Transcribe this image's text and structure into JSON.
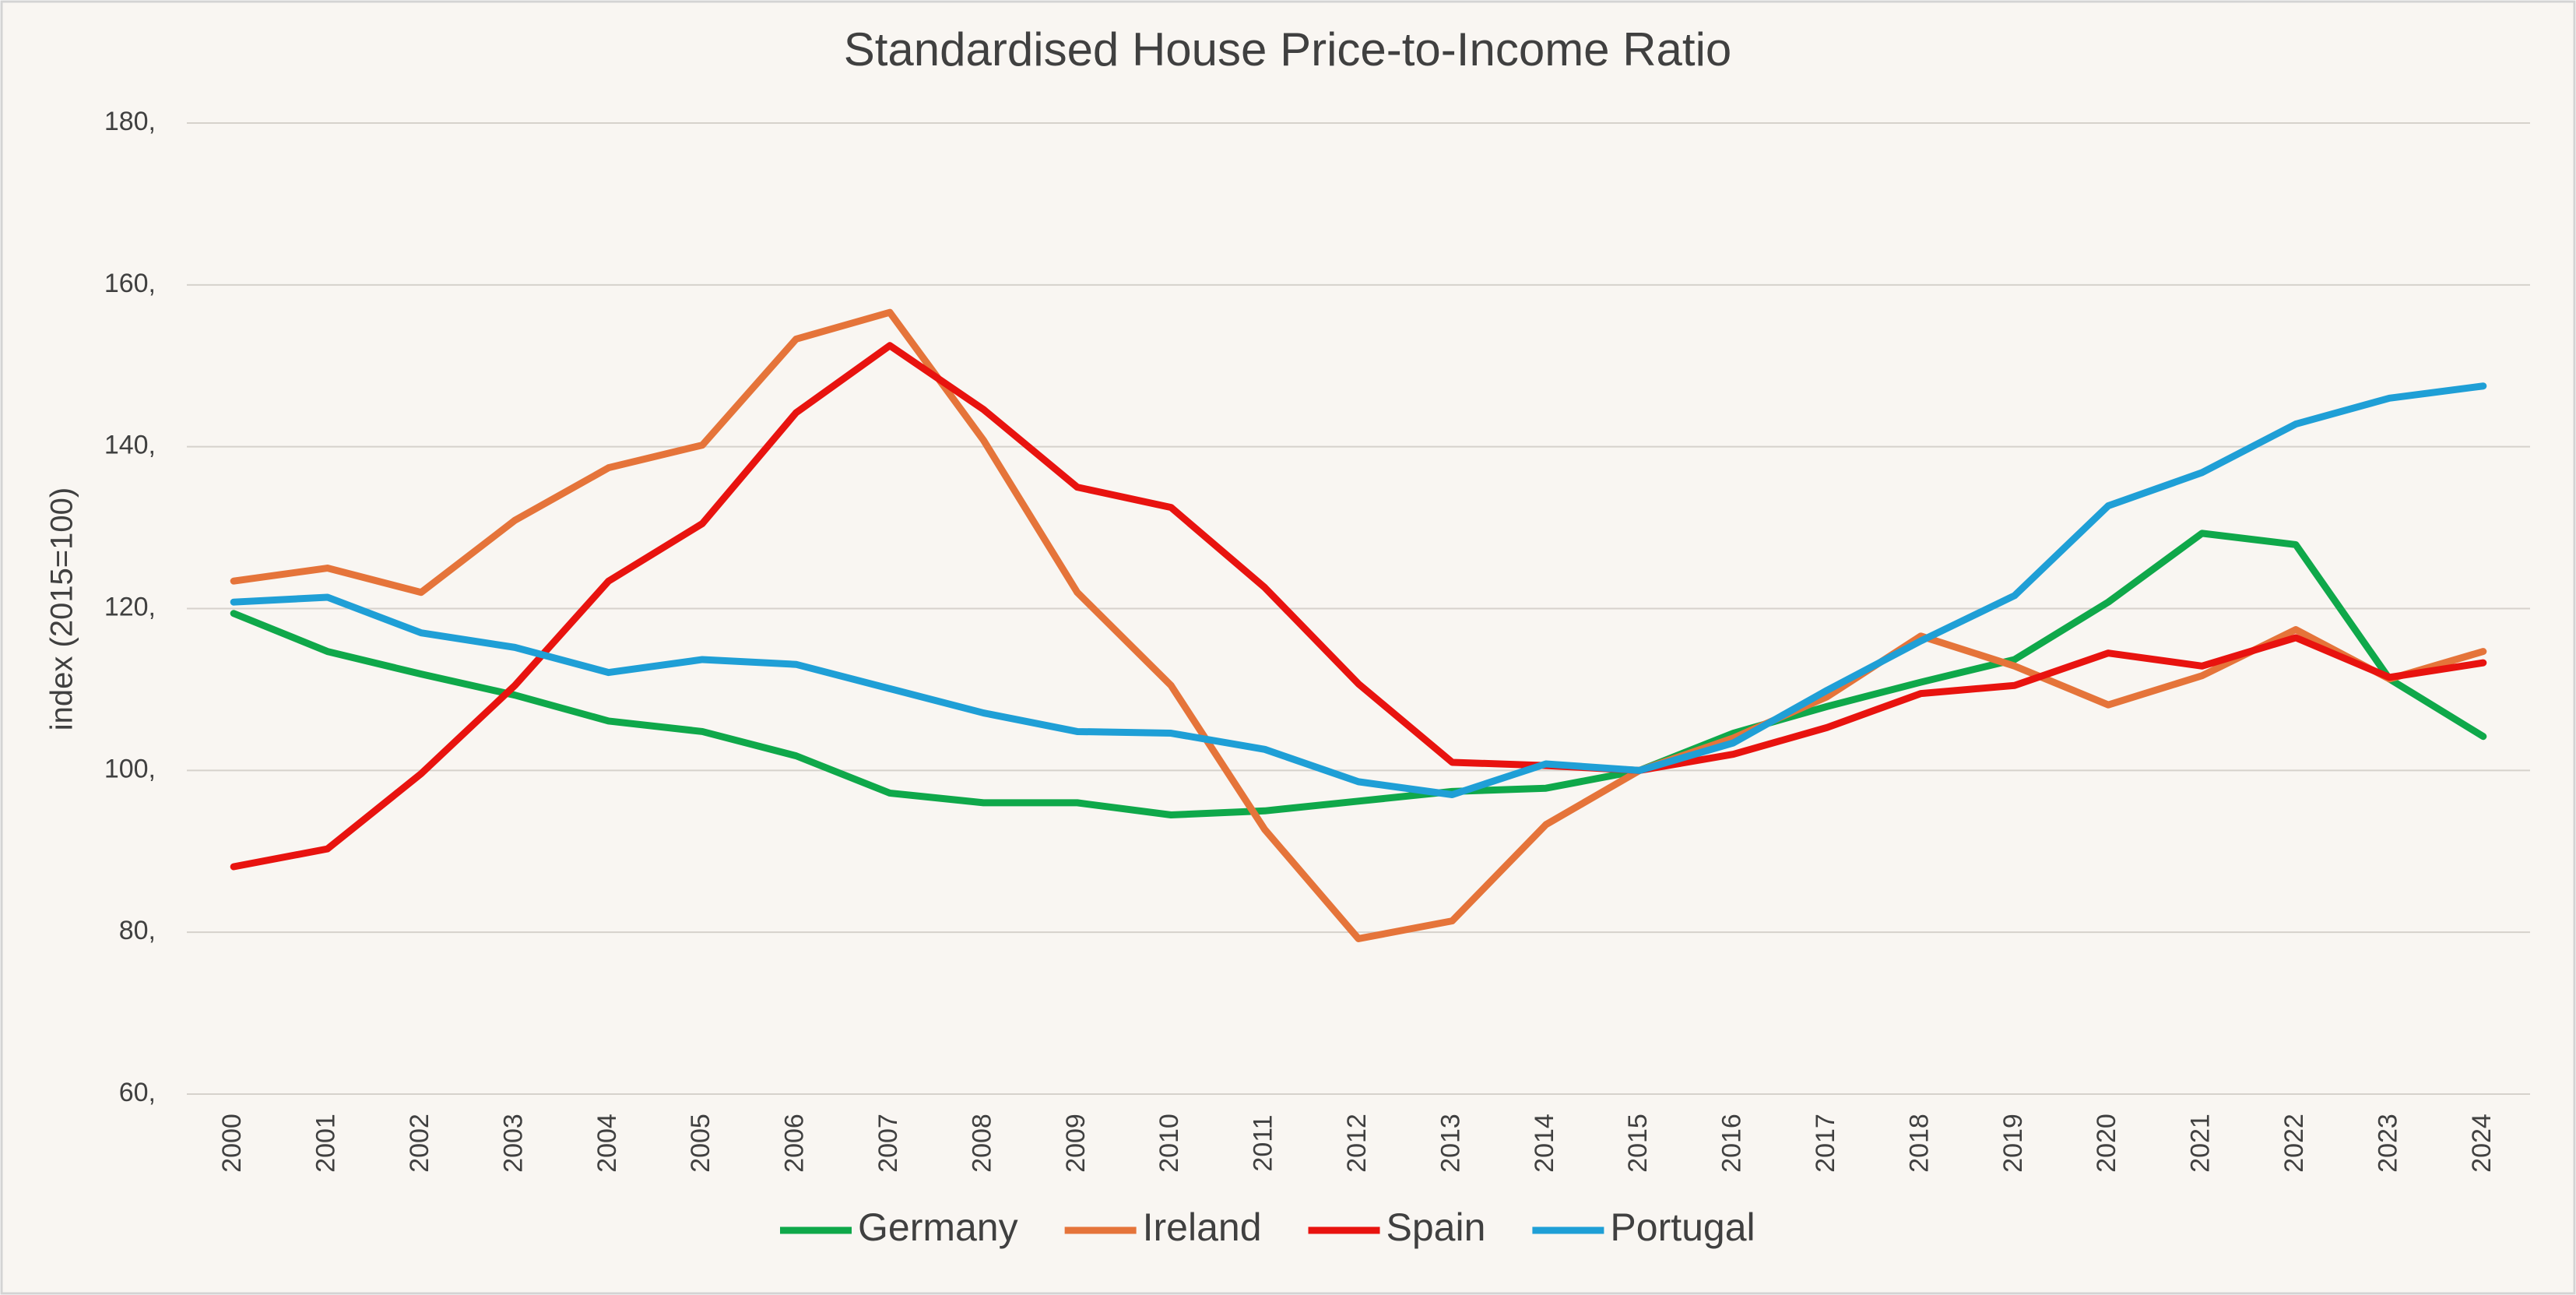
{
  "chart_data": {
    "type": "line",
    "title": "Standardised House Price-to-Income Ratio",
    "y_label": "index (2015=100)",
    "categories": [
      "2000",
      "2001",
      "2002",
      "2003",
      "2004",
      "2005",
      "2006",
      "2007",
      "2008",
      "2009",
      "2010",
      "2011",
      "2012",
      "2013",
      "2014",
      "2015",
      "2016",
      "2017",
      "2018",
      "2019",
      "2020",
      "2021",
      "2022",
      "2023",
      "2024"
    ],
    "series": [
      {
        "name": "Germany",
        "color": "#0fa84a",
        "values": [
          119.4,
          114.7,
          111.9,
          109.3,
          106.1,
          104.8,
          101.8,
          97.2,
          96,
          96,
          94.5,
          95,
          96.2,
          97.4,
          97.8,
          100,
          104.6,
          107.9,
          110.9,
          113.7,
          120.8,
          129.3,
          127.9,
          111.3,
          104.2
        ]
      },
      {
        "name": "Ireland",
        "color": "#e5743a",
        "values": [
          123.4,
          125,
          122,
          130.9,
          137.4,
          140.2,
          153.3,
          156.6,
          140.8,
          122,
          110.5,
          92.7,
          79.2,
          81.4,
          93.3,
          100,
          104,
          109.1,
          116.6,
          112.9,
          108.1,
          111.7,
          117.4,
          111.3,
          114.7
        ]
      },
      {
        "name": "Spain",
        "color": "#e8130f",
        "values": [
          88.1,
          90.3,
          99.6,
          110.5,
          123.4,
          130.5,
          144.2,
          152.5,
          144.6,
          135,
          132.5,
          122.6,
          110.7,
          101,
          100.6,
          100,
          102,
          105.3,
          109.5,
          110.5,
          114.5,
          112.9,
          116.4,
          111.5,
          113.3
        ]
      },
      {
        "name": "Portugal",
        "color": "#1f9fd6",
        "values": [
          120.8,
          121.4,
          117,
          115.2,
          112.1,
          113.7,
          113.1,
          110.1,
          107.1,
          104.8,
          104.6,
          102.6,
          98.6,
          97,
          100.8,
          100,
          103.4,
          109.9,
          116,
          121.6,
          132.7,
          136.8,
          142.8,
          146,
          147.5
        ]
      }
    ],
    "ylim": [
      60,
      180
    ],
    "yticks": [
      {
        "value": 60,
        "label": "60,"
      },
      {
        "value": 80,
        "label": "80,"
      },
      {
        "value": 100,
        "label": "100,"
      },
      {
        "value": 120,
        "label": "120,"
      },
      {
        "value": 140,
        "label": "140,"
      },
      {
        "value": 160,
        "label": "160,"
      },
      {
        "value": 180,
        "label": "180,"
      }
    ],
    "grid": true,
    "legend": "bottom"
  }
}
